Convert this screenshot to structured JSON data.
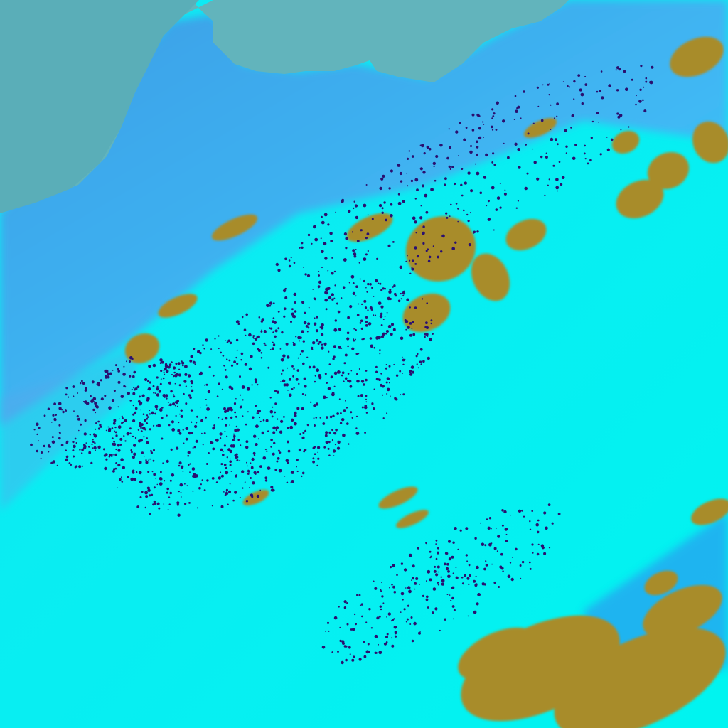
{
  "image": {
    "kind": "false-color satellite imagery",
    "colors": {
      "sea": "#62b4bc",
      "land": "#3aa6ec",
      "snow_cyan": "#04f2f4",
      "cloud_olive": "#a88c2c",
      "speckle": "#2a1070",
      "blue_streak": "#3a70f0"
    }
  }
}
